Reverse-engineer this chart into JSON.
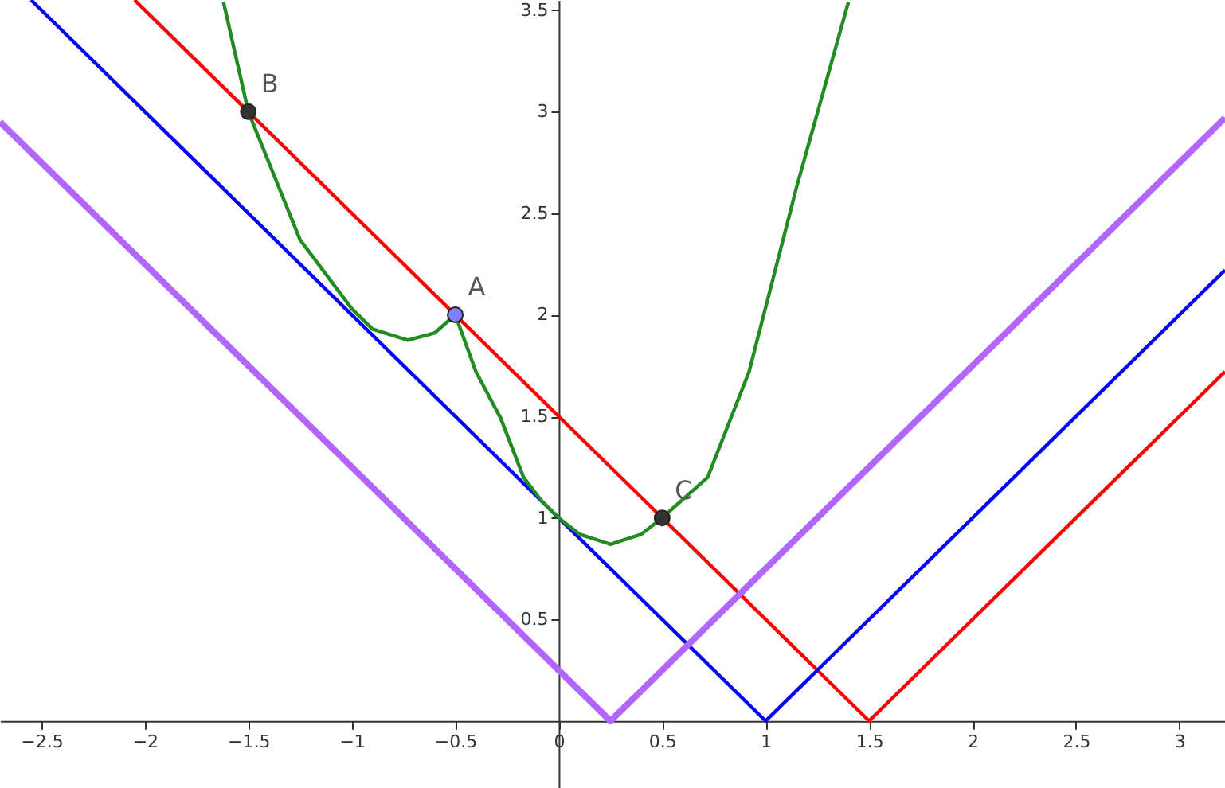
{
  "chart_data": {
    "type": "line",
    "xlim": [
      -2.7,
      3.22
    ],
    "ylim": [
      -0.33,
      3.55
    ],
    "xticks": [
      -2.5,
      -2,
      -1.5,
      -1,
      -0.5,
      0,
      0.5,
      1,
      1.5,
      2,
      2.5,
      3
    ],
    "yticks": [
      0.5,
      1,
      1.5,
      2,
      2.5,
      3,
      3.5
    ],
    "grid": false,
    "series": [
      {
        "color": "#ff0000",
        "x": [
          -2.05,
          1.5,
          3.22
        ],
        "values": [
          3.55,
          0,
          1.72
        ]
      },
      {
        "color": "#0000ff",
        "x": [
          -2.55,
          1,
          3.22
        ],
        "values": [
          3.55,
          0,
          2.22
        ]
      },
      {
        "color": "#b266ff",
        "x": [
          -2.7,
          0.25,
          3.22
        ],
        "values": [
          2.95,
          0,
          2.97
        ]
      },
      {
        "color": "#228b22",
        "x": [
          -1.62,
          -1.5,
          -1.25,
          -1.0,
          -0.9,
          -0.73,
          -0.6,
          -0.5,
          -0.4,
          -0.28,
          -0.17,
          -0.08,
          0,
          0.1,
          0.25,
          0.4,
          0.5,
          0.72,
          0.92,
          1.15,
          1.4
        ],
        "values": [
          3.54,
          3,
          2.37,
          2.03,
          1.93,
          1.875,
          1.91,
          2,
          1.72,
          1.49,
          1.2,
          1.08,
          1,
          0.92,
          0.87,
          0.92,
          1,
          1.2,
          1.72,
          2.63,
          3.54
        ]
      },
      {
        "type": "scatter",
        "colors": [
          "#333333",
          "#7f7fff",
          "#333333"
        ],
        "x": [
          -1.5,
          -0.5,
          0.5
        ],
        "values": [
          3,
          2,
          1
        ]
      }
    ],
    "annotations": [
      {
        "text": "B",
        "x": -1.5,
        "y": 3
      },
      {
        "text": "A",
        "x": -0.5,
        "y": 2
      },
      {
        "text": "C",
        "x": 0.5,
        "y": 1
      }
    ]
  }
}
